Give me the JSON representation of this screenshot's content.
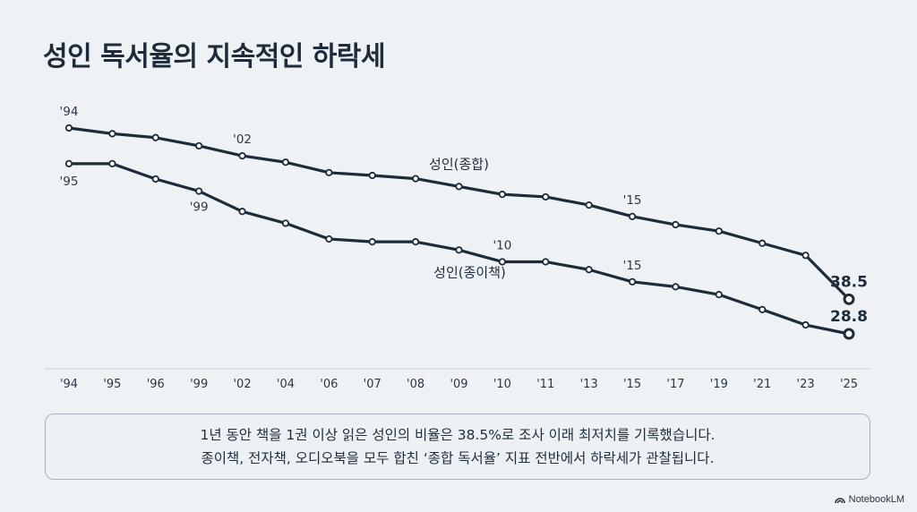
{
  "page": {
    "title": "성인 독서율의 지속적인 하락세",
    "caption_lines": [
      "1년 동안 책을 1권 이상 읽은 성인의 비율은 38.5%로 조사 이래 최저치를 기록했습니다.",
      "종이책, 전자책, 오디오북을 모두 합친 ‘종합 독서율’ 지표 전반에서 하락세가 관찰됩니다."
    ],
    "brand": "NotebookLM"
  },
  "chart_data": {
    "type": "line",
    "categories": [
      "'94",
      "'95",
      "'96",
      "'99",
      "'02",
      "'04",
      "'06",
      "'07",
      "'08",
      "'09",
      "'10",
      "'11",
      "'13",
      "'15",
      "'17",
      "'19",
      "'21",
      "'23",
      "'25"
    ],
    "series": [
      {
        "name": "성인(종합)",
        "values": [
          86.5,
          84.9,
          83.8,
          81.5,
          78.7,
          76.9,
          74.0,
          73.2,
          72.3,
          70.1,
          67.9,
          67.2,
          64.9,
          61.7,
          59.4,
          57.6,
          54.2,
          50.8,
          38.5
        ],
        "point_labels": {
          "0": "'94",
          "4": "'02",
          "13": "'15"
        },
        "end_label": "38.5",
        "color": "#1e2b3a"
      },
      {
        "name": "성인(종이책)",
        "values": [
          76.5,
          76.5,
          72.2,
          68.8,
          63.1,
          59.8,
          55.4,
          54.6,
          54.6,
          52.3,
          49.0,
          49.0,
          46.8,
          43.4,
          42.0,
          39.8,
          35.6,
          31.3,
          28.8
        ],
        "point_labels": {
          "0": "'95",
          "3": "'99",
          "10": "'10",
          "13": "'15"
        },
        "end_label": "28.8",
        "color": "#1e2b3a"
      }
    ]
  }
}
